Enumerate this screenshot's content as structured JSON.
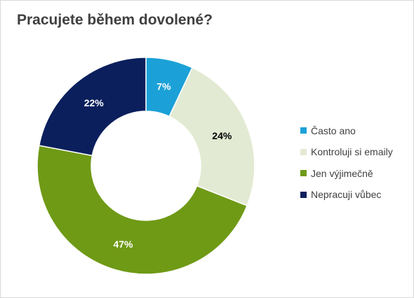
{
  "chart_data": {
    "type": "pie",
    "title": "Pracujete během dovolené?",
    "donut": true,
    "legend_position": "right",
    "categories": [
      "Často ano",
      "Kontroluji si emaily",
      "Jen výjimečně",
      "Nepracuji vůbec"
    ],
    "values": [
      7,
      24,
      47,
      22
    ],
    "labels": [
      "7%",
      "24%",
      "47%",
      "22%"
    ],
    "colors": [
      "#1ba1d8",
      "#e3ead3",
      "#6f9a16",
      "#0a1f5c"
    ],
    "label_colors": [
      "#ffffff",
      "#000000",
      "#ffffff",
      "#ffffff"
    ]
  }
}
